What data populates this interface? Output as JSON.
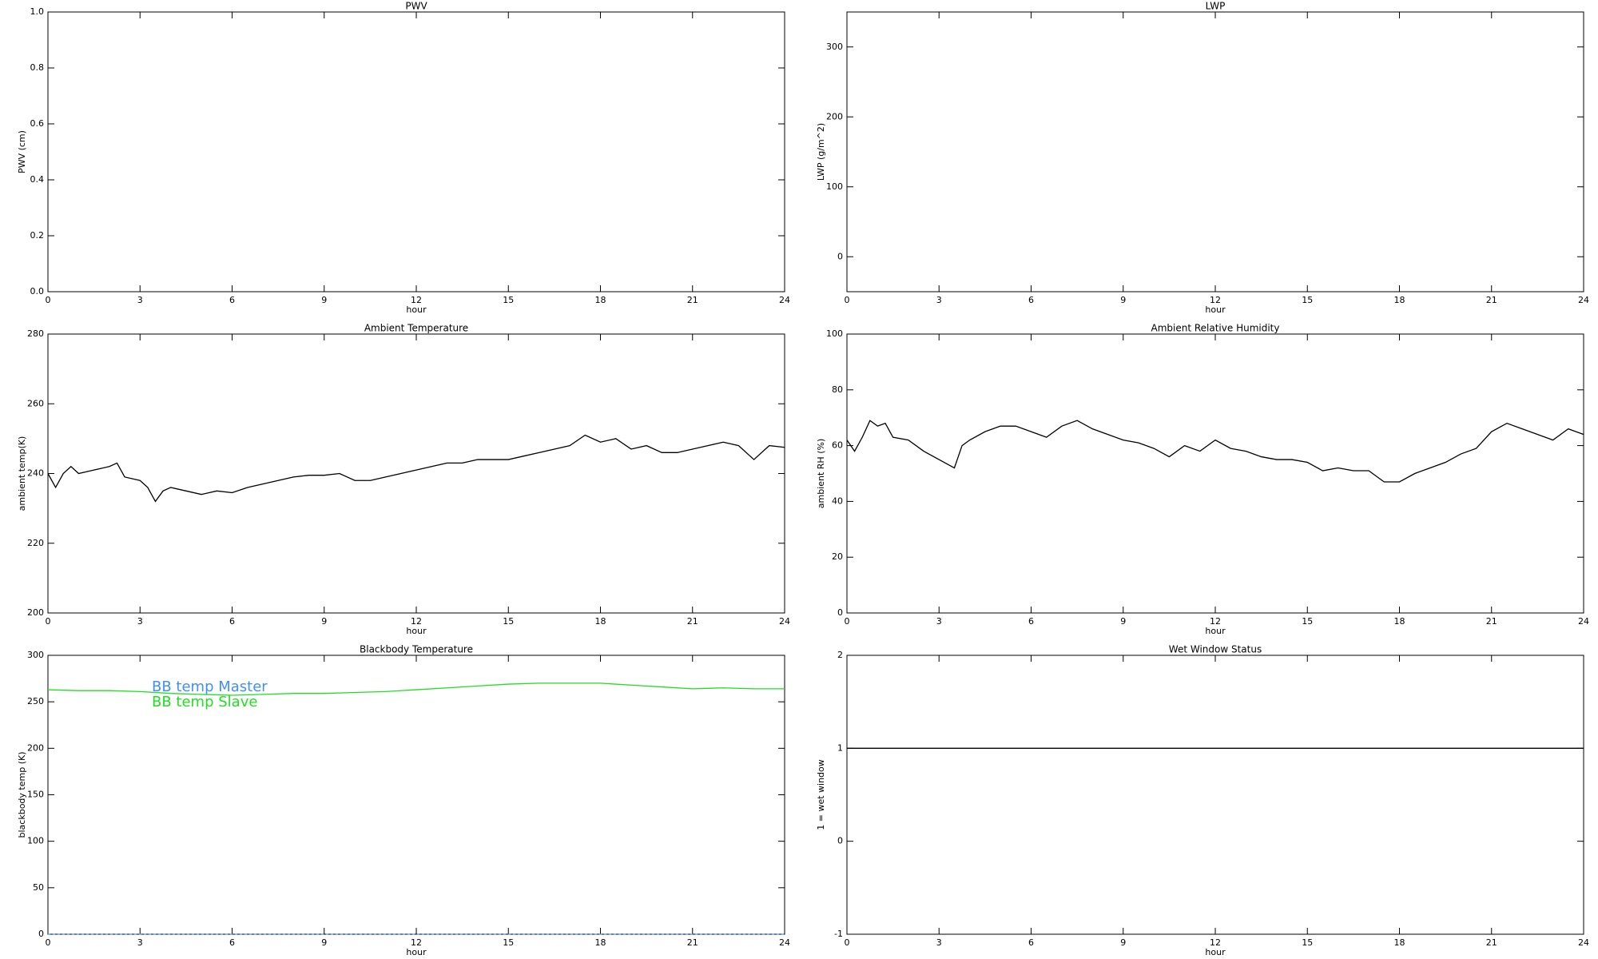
{
  "chart_data": [
    {
      "type": "line",
      "title": "PWV",
      "xlabel": "hour",
      "ylabel": "PWV (cm)",
      "xlim": [
        0,
        24
      ],
      "xticks": [
        0,
        3,
        6,
        9,
        12,
        15,
        18,
        21,
        24
      ],
      "ylim": [
        0,
        1
      ],
      "yticks": [
        {
          "value": 0,
          "label": "0.0"
        },
        0.2,
        0.4,
        0.6,
        0.8,
        {
          "value": 1,
          "label": "1.0"
        }
      ],
      "x": [],
      "series": []
    },
    {
      "type": "line",
      "title": "LWP",
      "xlabel": "hour",
      "ylabel": "LWP (g/m^2)",
      "xlim": [
        0,
        24
      ],
      "xticks": [
        0,
        3,
        6,
        9,
        12,
        15,
        18,
        21,
        24
      ],
      "ylim": [
        -50,
        350
      ],
      "yticks": [
        0,
        100,
        200,
        300
      ],
      "x": [],
      "series": []
    },
    {
      "type": "line",
      "title": "Ambient Temperature",
      "xlabel": "hour",
      "ylabel": "ambient temp(K)",
      "xlim": [
        0,
        24
      ],
      "xticks": [
        0,
        3,
        6,
        9,
        12,
        15,
        18,
        21,
        24
      ],
      "ylim": [
        200,
        280
      ],
      "yticks": [
        200,
        220,
        240,
        260,
        280
      ],
      "x": [
        0,
        0.25,
        0.5,
        0.75,
        1,
        1.5,
        2,
        2.25,
        2.5,
        3,
        3.25,
        3.5,
        3.75,
        4,
        4.5,
        5,
        5.5,
        6,
        6.5,
        7,
        7.5,
        8,
        8.5,
        9,
        9.5,
        10,
        10.5,
        11,
        11.5,
        12,
        12.5,
        13,
        13.5,
        14,
        14.5,
        15,
        15.5,
        16,
        16.5,
        17,
        17.5,
        18,
        18.5,
        19,
        19.5,
        20,
        20.5,
        21,
        21.5,
        22,
        22.5,
        23,
        23.5,
        24
      ],
      "series": [
        {
          "color": "#000000",
          "values": [
            240,
            236,
            240,
            242,
            240,
            241,
            242,
            243,
            239,
            238,
            236,
            232,
            235,
            236,
            235,
            234,
            235,
            234.5,
            236,
            237,
            238,
            239,
            239.5,
            239.5,
            240,
            238,
            238,
            239,
            240,
            241,
            242,
            243,
            243,
            244,
            244,
            244,
            245,
            246,
            247,
            248,
            251,
            249,
            250,
            247,
            248,
            246,
            246,
            247,
            248,
            249,
            248,
            244,
            248,
            247.5
          ]
        }
      ]
    },
    {
      "type": "line",
      "title": "Ambient Relative Humidity",
      "xlabel": "hour",
      "ylabel": "ambient RH (%)",
      "xlim": [
        0,
        24
      ],
      "xticks": [
        0,
        3,
        6,
        9,
        12,
        15,
        18,
        21,
        24
      ],
      "ylim": [
        0,
        100
      ],
      "yticks": [
        0,
        20,
        40,
        60,
        80,
        100
      ],
      "x": [
        0,
        0.25,
        0.5,
        0.75,
        1,
        1.25,
        1.5,
        2,
        2.5,
        3,
        3.5,
        3.75,
        4,
        4.5,
        5,
        5.5,
        6,
        6.5,
        7,
        7.5,
        8,
        8.5,
        9,
        9.5,
        10,
        10.5,
        11,
        11.5,
        12,
        12.5,
        13,
        13.5,
        14,
        14.5,
        15,
        15.5,
        16,
        16.5,
        17,
        17.5,
        18,
        18.5,
        19,
        19.5,
        20,
        20.5,
        21,
        21.5,
        22,
        22.5,
        23,
        23.5,
        24
      ],
      "series": [
        {
          "color": "#000000",
          "values": [
            62,
            58,
            63,
            69,
            67,
            68,
            63,
            62,
            58,
            55,
            52,
            60,
            62,
            65,
            67,
            67,
            65,
            63,
            67,
            69,
            66,
            64,
            62,
            61,
            59,
            56,
            60,
            58,
            62,
            59,
            58,
            56,
            55,
            55,
            54,
            51,
            52,
            51,
            51,
            47,
            47,
            50,
            52,
            54,
            57,
            59,
            65,
            68,
            66,
            64,
            62,
            66,
            64
          ]
        }
      ]
    },
    {
      "type": "line",
      "title": "Blackbody Temperature",
      "xlabel": "hour",
      "ylabel": "blackbody temp (K)",
      "xlim": [
        0,
        24
      ],
      "xticks": [
        0,
        3,
        6,
        9,
        12,
        15,
        18,
        21,
        24
      ],
      "ylim": [
        0,
        300
      ],
      "yticks": [
        0,
        50,
        100,
        150,
        200,
        250,
        300
      ],
      "x": [
        0,
        1,
        2,
        3,
        4,
        5,
        6,
        7,
        8,
        9,
        10,
        11,
        12,
        13,
        14,
        15,
        16,
        17,
        18,
        19,
        20,
        21,
        22,
        23,
        24
      ],
      "series": [
        {
          "name": "BB temp Master",
          "color": "#3f8fff",
          "values": [
            0,
            0,
            0,
            0,
            0,
            0,
            0,
            0,
            0,
            0,
            0,
            0,
            0,
            0,
            0,
            0,
            0,
            0,
            0,
            0,
            0,
            0,
            0,
            0,
            0
          ]
        },
        {
          "name": "BB temp Slave",
          "color": "#22dd22",
          "values": [
            263,
            262,
            262,
            261,
            259,
            258,
            257,
            258,
            259,
            259,
            260,
            261,
            263,
            265,
            267,
            269,
            270,
            270,
            270,
            268,
            266,
            264,
            265,
            264,
            264
          ]
        }
      ]
    },
    {
      "type": "line",
      "title": "Wet Window Status",
      "xlabel": "hour",
      "ylabel": "1 = wet window",
      "xlim": [
        0,
        24
      ],
      "xticks": [
        0,
        3,
        6,
        9,
        12,
        15,
        18,
        21,
        24
      ],
      "ylim": [
        -1,
        2
      ],
      "yticks": [
        -1,
        0,
        1,
        2
      ],
      "x": [
        0,
        24
      ],
      "series": [
        {
          "color": "#000000",
          "values": [
            1,
            1
          ]
        }
      ]
    }
  ]
}
